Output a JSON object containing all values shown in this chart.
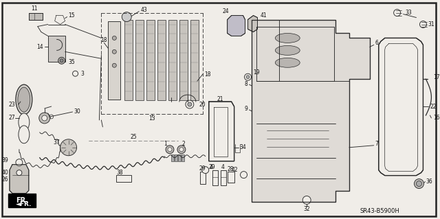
{
  "background_color": "#f0ede8",
  "border_color": "#333333",
  "fig_width": 6.4,
  "fig_height": 3.19,
  "dpi": 100,
  "diagram_code": "SR43-B5900H",
  "line_color": "#2a2a2a",
  "label_color": "#111111"
}
